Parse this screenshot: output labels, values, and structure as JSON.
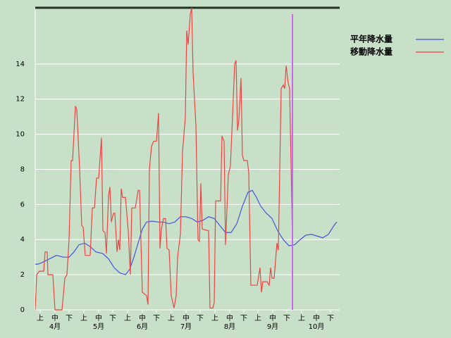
{
  "chart_data": {
    "type": "line",
    "xlim": [
      0,
      432
    ],
    "ylim": [
      0,
      17.2
    ],
    "yticks": [
      0,
      2,
      4,
      6,
      8,
      10,
      12,
      14
    ],
    "xticks": [
      {
        "value": 7,
        "label": "上"
      },
      {
        "value": 28,
        "label": "中"
      },
      {
        "value": 48,
        "label": "下"
      },
      {
        "value": 69,
        "label": "上"
      },
      {
        "value": 90,
        "label": "中"
      },
      {
        "value": 110,
        "label": "下"
      },
      {
        "value": 131,
        "label": "上"
      },
      {
        "value": 152,
        "label": "中"
      },
      {
        "value": 172,
        "label": "下"
      },
      {
        "value": 193,
        "label": "上"
      },
      {
        "value": 214,
        "label": "中"
      },
      {
        "value": 234,
        "label": "下"
      },
      {
        "value": 255,
        "label": "上"
      },
      {
        "value": 276,
        "label": "中"
      },
      {
        "value": 296,
        "label": "下"
      },
      {
        "value": 316,
        "label": "上"
      },
      {
        "value": 337,
        "label": "中"
      },
      {
        "value": 357,
        "label": "下"
      },
      {
        "value": 378,
        "label": "上"
      },
      {
        "value": 399,
        "label": "中"
      },
      {
        "value": 419,
        "label": "下"
      }
    ],
    "month_labels": [
      {
        "value": 28,
        "label": "4月"
      },
      {
        "value": 90,
        "label": "5月"
      },
      {
        "value": 152,
        "label": "6月"
      },
      {
        "value": 214,
        "label": "7月"
      },
      {
        "value": 276,
        "label": "8月"
      },
      {
        "value": 337,
        "label": "9月"
      },
      {
        "value": 399,
        "label": "10月"
      }
    ],
    "grid": true,
    "marker_x": 365,
    "marker_color": "#cc66ee",
    "series": [
      {
        "name": "平年降水量",
        "color": "#4455dd",
        "x": [
          0,
          4,
          10,
          20,
          30,
          40,
          48,
          55,
          62,
          70,
          78,
          86,
          96,
          104,
          112,
          120,
          128,
          134,
          140,
          146,
          152,
          158,
          166,
          174,
          182,
          190,
          198,
          206,
          214,
          222,
          230,
          238,
          246,
          254,
          262,
          270,
          278,
          286,
          294,
          302,
          308,
          314,
          320,
          328,
          336,
          344,
          352,
          360,
          368,
          376,
          384,
          392,
          400,
          408,
          416,
          424,
          428
        ],
        "values": [
          2.6,
          2.6,
          2.7,
          2.9,
          3.1,
          3.0,
          3.0,
          3.3,
          3.7,
          3.8,
          3.6,
          3.3,
          3.2,
          2.9,
          2.4,
          2.1,
          2.0,
          2.3,
          3.0,
          3.8,
          4.6,
          5.0,
          5.05,
          5.0,
          5.0,
          4.9,
          5.0,
          5.3,
          5.3,
          5.2,
          5.0,
          5.1,
          5.3,
          5.2,
          4.8,
          4.4,
          4.4,
          4.9,
          5.9,
          6.7,
          6.8,
          6.4,
          5.9,
          5.5,
          5.2,
          4.5,
          4.0,
          3.65,
          3.7,
          4.0,
          4.25,
          4.3,
          4.2,
          4.1,
          4.3,
          4.8,
          5.0
        ]
      },
      {
        "name": "移動降水量",
        "color": "#ee4444",
        "x": [
          0,
          2,
          6,
          12,
          14,
          17,
          18,
          25,
          28,
          38,
          42,
          45,
          48,
          51,
          53,
          57,
          59,
          63,
          66,
          68,
          71,
          78,
          81,
          84,
          87,
          90,
          94,
          96,
          99,
          101,
          104,
          106,
          108,
          111,
          113,
          116,
          118,
          120,
          122,
          124,
          128,
          132,
          135,
          137,
          142,
          146,
          148,
          152,
          158,
          160,
          162,
          165,
          168,
          172,
          175,
          177,
          179,
          182,
          185,
          187,
          190,
          193,
          197,
          200,
          202,
          206,
          209,
          213,
          215,
          217,
          220,
          222,
          224,
          228,
          231,
          233,
          235,
          237,
          246,
          248,
          252,
          254,
          256,
          263,
          265,
          268,
          270,
          274,
          277,
          281,
          283,
          285,
          287,
          289,
          292,
          294,
          296,
          301,
          303,
          306,
          315,
          319,
          321,
          323,
          329,
          332,
          334,
          336,
          339,
          343,
          345,
          349,
          352,
          354,
          356,
          359,
          361,
          365
        ],
        "values": [
          0,
          2,
          2.2,
          2.2,
          3.3,
          3.3,
          2,
          2,
          0,
          0,
          1.8,
          2,
          4,
          8.5,
          8.5,
          11.6,
          11.4,
          8,
          4.8,
          4.7,
          3.1,
          3.1,
          5.8,
          5.8,
          7.5,
          7.5,
          9.8,
          4.5,
          4.4,
          3.2,
          6.5,
          7,
          5,
          5.5,
          5.5,
          3.3,
          4,
          3.4,
          6.9,
          6.4,
          6.4,
          4.5,
          2,
          5.8,
          5.8,
          6.8,
          6.8,
          1,
          0.8,
          0.3,
          8,
          9.3,
          9.6,
          9.6,
          11.2,
          3.5,
          4.6,
          5.2,
          5.2,
          3.5,
          3.4,
          0.8,
          0.1,
          0.8,
          3,
          4.3,
          9,
          11,
          15.9,
          15.1,
          16.8,
          17.2,
          13.5,
          10.5,
          4.0,
          3.9,
          7.2,
          4.6,
          4.5,
          0.1,
          0.1,
          0.4,
          6.2,
          6.2,
          9.9,
          9.6,
          3.7,
          7.7,
          8.2,
          12,
          14,
          14.2,
          10.2,
          10.8,
          13.2,
          8.8,
          8.5,
          8.5,
          7.8,
          1.4,
          1.4,
          2.4,
          1.0,
          1.6,
          1.6,
          1.4,
          2.4,
          1.8,
          1.8,
          3.8,
          3.4,
          12.6,
          12.8,
          12.6,
          13.9,
          12.9,
          12.6,
          4.0
        ]
      }
    ]
  }
}
